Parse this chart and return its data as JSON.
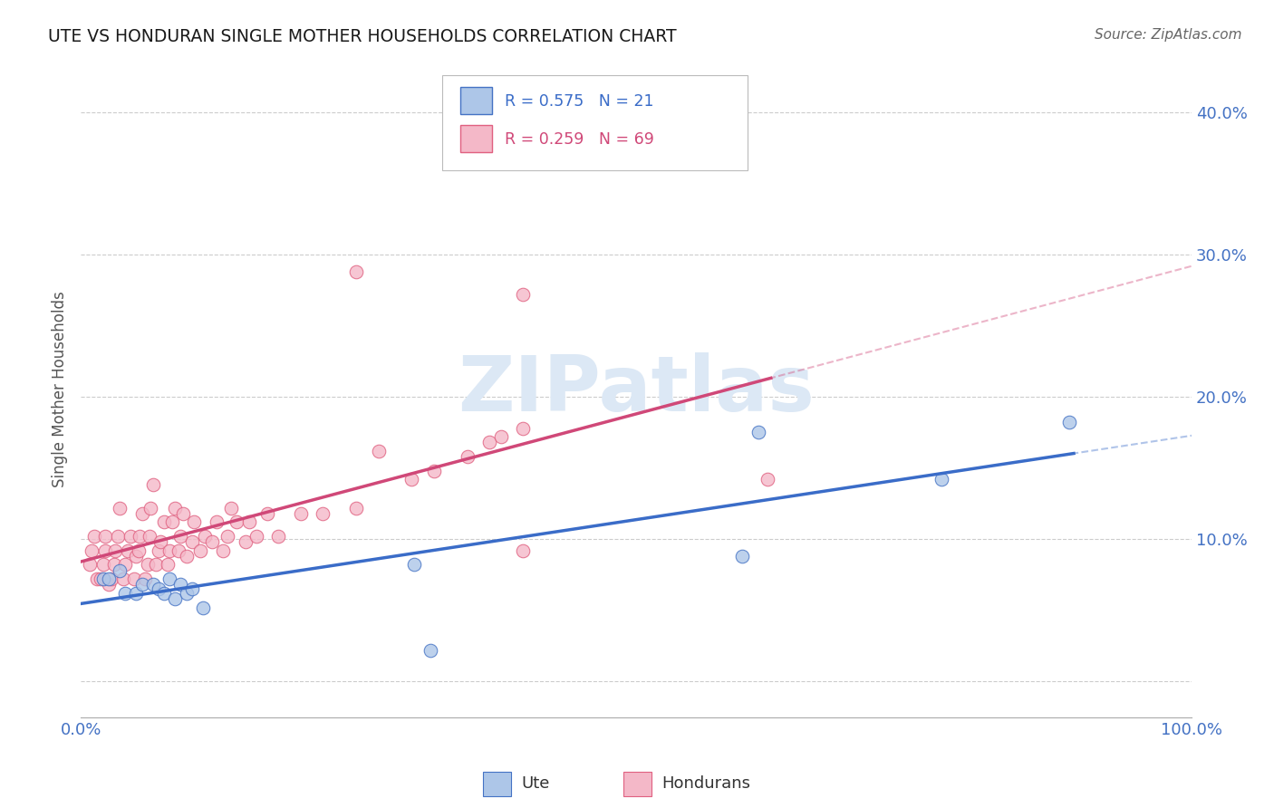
{
  "title": "UTE VS HONDURAN SINGLE MOTHER HOUSEHOLDS CORRELATION CHART",
  "source": "Source: ZipAtlas.com",
  "ylabel": "Single Mother Households",
  "xlim": [
    0.0,
    1.0
  ],
  "ylim": [
    -0.025,
    0.435
  ],
  "background_color": "#ffffff",
  "grid_color": "#cccccc",
  "tick_color": "#4472c4",
  "ute_fill": "#adc6e8",
  "ute_edge": "#4472c4",
  "hon_fill": "#f4b8c8",
  "hon_edge": "#e06080",
  "ute_line_color": "#3a6cc8",
  "hon_line_color": "#d04878",
  "watermark_text": "ZIPatlas",
  "watermark_color": "#dce8f5",
  "ute_R": 0.575,
  "ute_N": 21,
  "hon_R": 0.259,
  "hon_N": 69,
  "ute_x": [
    0.02,
    0.025,
    0.035,
    0.04,
    0.05,
    0.055,
    0.065,
    0.07,
    0.075,
    0.08,
    0.085,
    0.09,
    0.095,
    0.1,
    0.11,
    0.3,
    0.315,
    0.595,
    0.61,
    0.775,
    0.89
  ],
  "ute_y": [
    0.072,
    0.072,
    0.078,
    0.062,
    0.062,
    0.068,
    0.068,
    0.065,
    0.062,
    0.072,
    0.058,
    0.068,
    0.062,
    0.065,
    0.052,
    0.082,
    0.022,
    0.088,
    0.175,
    0.142,
    0.182
  ],
  "hon_x": [
    0.008,
    0.01,
    0.012,
    0.015,
    0.018,
    0.02,
    0.022,
    0.022,
    0.025,
    0.028,
    0.03,
    0.031,
    0.033,
    0.035,
    0.038,
    0.04,
    0.042,
    0.045,
    0.048,
    0.05,
    0.052,
    0.053,
    0.055,
    0.058,
    0.06,
    0.062,
    0.063,
    0.065,
    0.068,
    0.07,
    0.072,
    0.075,
    0.078,
    0.08,
    0.082,
    0.085,
    0.088,
    0.09,
    0.092,
    0.095,
    0.1,
    0.102,
    0.108,
    0.112,
    0.118,
    0.122,
    0.128,
    0.132,
    0.135,
    0.14,
    0.148,
    0.152,
    0.158,
    0.168,
    0.178,
    0.198,
    0.218,
    0.248,
    0.268,
    0.298,
    0.318,
    0.348,
    0.368,
    0.378,
    0.398,
    0.398,
    0.398,
    0.248,
    0.618
  ],
  "hon_y": [
    0.082,
    0.092,
    0.102,
    0.072,
    0.072,
    0.082,
    0.092,
    0.102,
    0.068,
    0.072,
    0.082,
    0.092,
    0.102,
    0.122,
    0.072,
    0.082,
    0.092,
    0.102,
    0.072,
    0.088,
    0.092,
    0.102,
    0.118,
    0.072,
    0.082,
    0.102,
    0.122,
    0.138,
    0.082,
    0.092,
    0.098,
    0.112,
    0.082,
    0.092,
    0.112,
    0.122,
    0.092,
    0.102,
    0.118,
    0.088,
    0.098,
    0.112,
    0.092,
    0.102,
    0.098,
    0.112,
    0.092,
    0.102,
    0.122,
    0.112,
    0.098,
    0.112,
    0.102,
    0.118,
    0.102,
    0.118,
    0.118,
    0.122,
    0.162,
    0.142,
    0.148,
    0.158,
    0.168,
    0.172,
    0.178,
    0.272,
    0.092,
    0.288,
    0.142
  ]
}
